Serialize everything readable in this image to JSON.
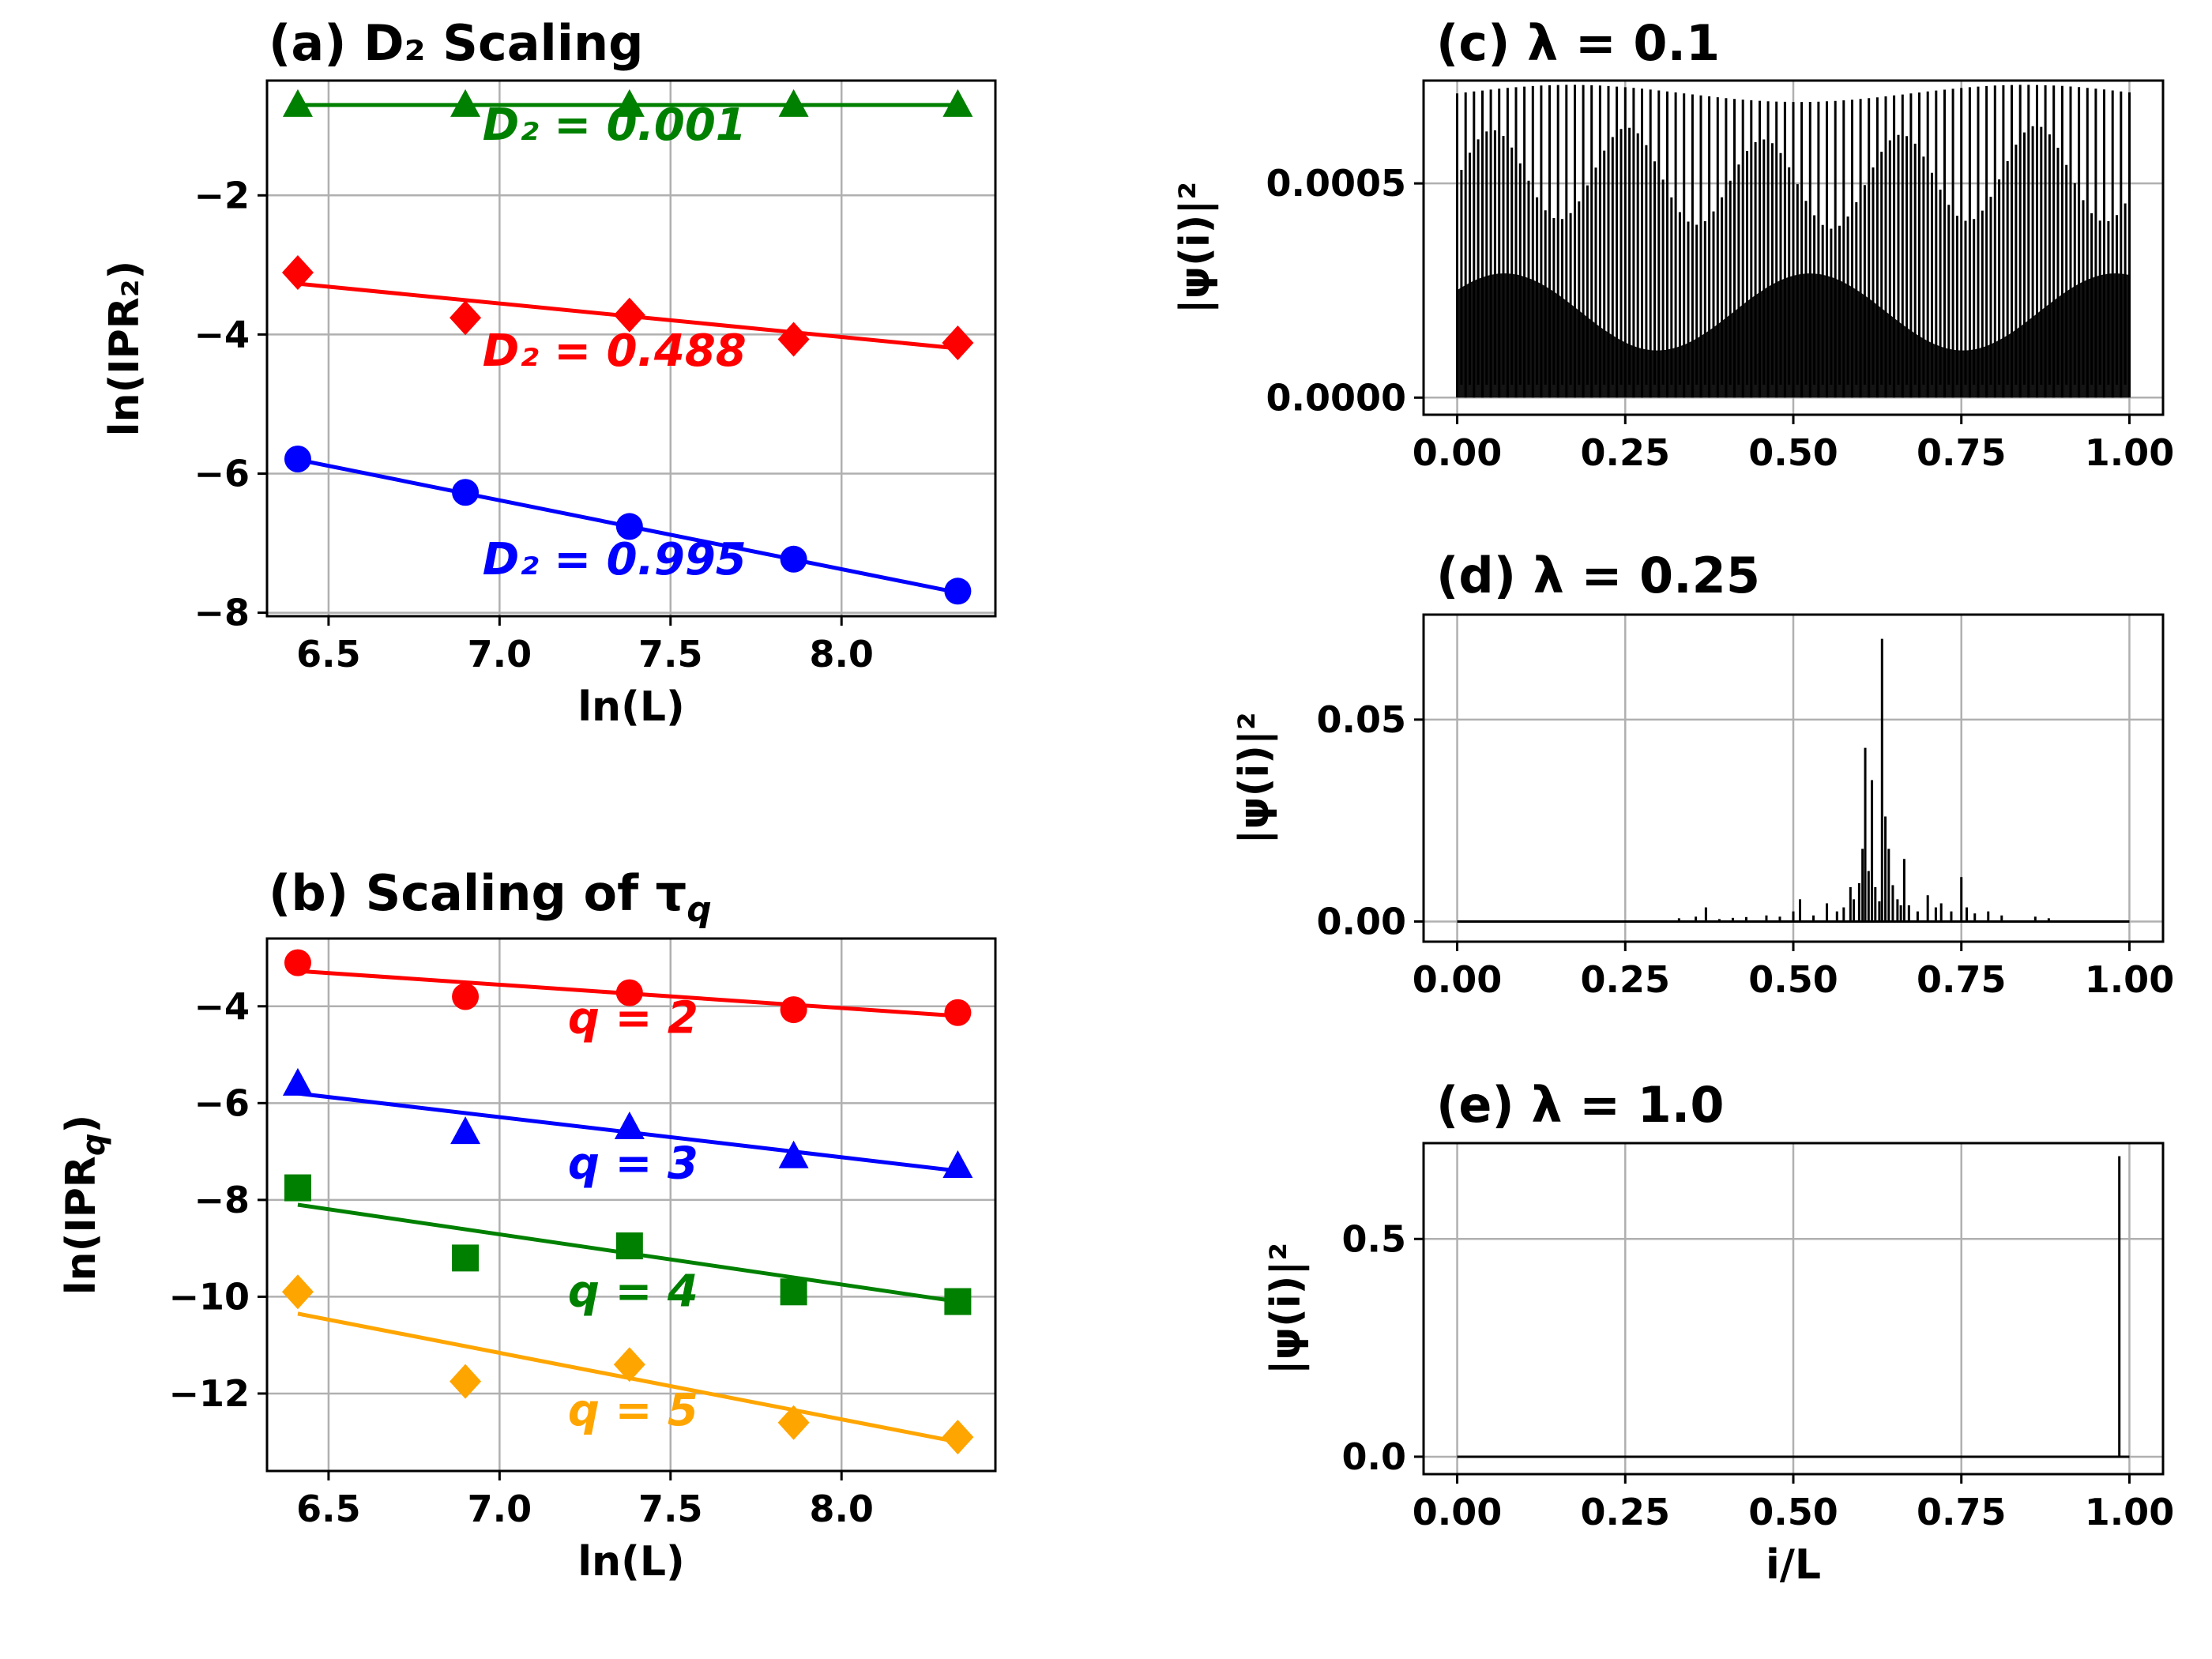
{
  "chart_data": [
    {
      "id": "a",
      "type": "scatter",
      "title": "(a)  D₂ Scaling",
      "xlabel": "ln(L)",
      "ylabel": "ln(IPR₂)",
      "xlim": [
        6.32,
        8.45
      ],
      "ylim": [
        -8.05,
        -0.35
      ],
      "xticks": [
        6.5,
        7.0,
        7.5,
        8.0
      ],
      "xtick_labels": [
        "6.5",
        "7.0",
        "7.5",
        "8.0"
      ],
      "yticks": [
        -2,
        -4,
        -6,
        -8
      ],
      "ytick_labels": [
        "−2",
        "−4",
        "−6",
        "−8"
      ],
      "grid": true,
      "x": [
        6.41,
        6.9,
        7.38,
        7.86,
        8.34
      ],
      "series": [
        {
          "name": "λ=0.1",
          "color": "#0000ff",
          "marker": "circle",
          "values": [
            -5.79,
            -6.27,
            -6.76,
            -7.23,
            -7.69
          ],
          "fit": [
            -5.8,
            -7.71
          ],
          "annotation": "D₂ = 0.995",
          "annot_at": [
            6.95,
            -7.45
          ]
        },
        {
          "name": "λ=0.25",
          "color": "#ff0000",
          "marker": "diamond",
          "values": [
            -3.11,
            -3.76,
            -3.72,
            -4.07,
            -4.12
          ],
          "fit": [
            -3.27,
            -4.2
          ],
          "annotation": "D₂ = 0.488",
          "annot_at": [
            6.95,
            -4.45
          ]
        },
        {
          "name": "λ=1.0",
          "color": "#008000",
          "marker": "triangle",
          "values": [
            -0.7,
            -0.7,
            -0.7,
            -0.7,
            -0.7
          ],
          "fit": [
            -0.7,
            -0.7
          ],
          "annotation": "D₂ = 0.001",
          "annot_at": [
            6.95,
            -1.2
          ]
        }
      ]
    },
    {
      "id": "b",
      "type": "scatter",
      "title": "(b)  Scaling of τ",
      "title_sub": "q",
      "xlabel": "ln(L)",
      "ylabel": "ln(IPR",
      "ylabel_sub": "q",
      "xlim": [
        6.32,
        8.45
      ],
      "ylim": [
        -13.6,
        -2.6
      ],
      "xticks": [
        6.5,
        7.0,
        7.5,
        8.0
      ],
      "xtick_labels": [
        "6.5",
        "7.0",
        "7.5",
        "8.0"
      ],
      "yticks": [
        -4,
        -6,
        -8,
        -10,
        -12
      ],
      "ytick_labels": [
        "−4",
        "−6",
        "−8",
        "−10",
        "−12"
      ],
      "grid": true,
      "x": [
        6.41,
        6.9,
        7.38,
        7.86,
        8.34
      ],
      "series": [
        {
          "name": "q=2",
          "color": "#ff0000",
          "marker": "circle",
          "values": [
            -3.1,
            -3.8,
            -3.72,
            -4.07,
            -4.13
          ],
          "fit": [
            -3.27,
            -4.2
          ],
          "annotation": "q = 2",
          "annot_at": [
            7.2,
            -4.55
          ]
        },
        {
          "name": "q=3",
          "color": "#0000ff",
          "marker": "triangle",
          "values": [
            -5.6,
            -6.6,
            -6.5,
            -7.1,
            -7.3
          ],
          "fit": [
            -5.8,
            -7.4
          ],
          "annotation": "q = 3",
          "annot_at": [
            7.2,
            -7.55
          ]
        },
        {
          "name": "q=4",
          "color": "#008000",
          "marker": "square",
          "values": [
            -7.75,
            -9.2,
            -8.95,
            -9.9,
            -10.1
          ],
          "fit": [
            -8.1,
            -10.1
          ],
          "annotation": "q = 4",
          "annot_at": [
            7.2,
            -10.2
          ]
        },
        {
          "name": "q=5",
          "color": "#ffa500",
          "marker": "diamond",
          "values": [
            -9.9,
            -11.75,
            -11.4,
            -12.6,
            -12.9
          ],
          "fit": [
            -10.35,
            -13.0
          ],
          "annotation": "q = 5",
          "annot_at": [
            7.2,
            -12.65
          ]
        }
      ]
    },
    {
      "id": "c",
      "type": "line",
      "title": "(c)  λ = 0.1",
      "xlabel": "",
      "ylabel": "|ψ(i)|²",
      "xlim": [
        -0.05,
        1.05
      ],
      "ylim": [
        -4e-05,
        0.00074
      ],
      "xticks": [
        0,
        0.25,
        0.5,
        0.75,
        1.0
      ],
      "xtick_labels": [
        "0.00",
        "0.25",
        "0.50",
        "0.75",
        "1.00"
      ],
      "yticks": [
        0,
        0.0005
      ],
      "ytick_labels": [
        "0.0000",
        "0.0005"
      ],
      "grid": true,
      "description": "extended, rapidly oscillating wavefunction",
      "oscillations": 80,
      "envelope_max": 0.00073,
      "envelope_min": 0.00069
    },
    {
      "id": "d",
      "type": "line",
      "title": "(d)  λ = 0.25",
      "xlabel": "",
      "ylabel": "|ψ(i)|²",
      "xlim": [
        -0.05,
        1.05
      ],
      "ylim": [
        -0.005,
        0.076
      ],
      "xticks": [
        0,
        0.25,
        0.5,
        0.75,
        1.0
      ],
      "xtick_labels": [
        "0.00",
        "0.25",
        "0.50",
        "0.75",
        "1.00"
      ],
      "yticks": [
        0,
        0.05
      ],
      "ytick_labels": [
        "0.00",
        "0.05"
      ],
      "grid": true,
      "peaks": [
        [
          0.33,
          0.0008
        ],
        [
          0.355,
          0.0012
        ],
        [
          0.37,
          0.0035
        ],
        [
          0.39,
          0.0006
        ],
        [
          0.41,
          0.0009
        ],
        [
          0.43,
          0.0011
        ],
        [
          0.46,
          0.0015
        ],
        [
          0.48,
          0.0012
        ],
        [
          0.5,
          0.0025
        ],
        [
          0.51,
          0.0055
        ],
        [
          0.53,
          0.0015
        ],
        [
          0.55,
          0.0045
        ],
        [
          0.565,
          0.0025
        ],
        [
          0.575,
          0.0035
        ],
        [
          0.585,
          0.0085
        ],
        [
          0.59,
          0.0055
        ],
        [
          0.598,
          0.0095
        ],
        [
          0.603,
          0.018
        ],
        [
          0.607,
          0.043
        ],
        [
          0.612,
          0.0125
        ],
        [
          0.617,
          0.035
        ],
        [
          0.622,
          0.0085
        ],
        [
          0.628,
          0.005
        ],
        [
          0.632,
          0.07
        ],
        [
          0.637,
          0.026
        ],
        [
          0.642,
          0.018
        ],
        [
          0.648,
          0.009
        ],
        [
          0.655,
          0.0055
        ],
        [
          0.66,
          0.004
        ],
        [
          0.665,
          0.0155
        ],
        [
          0.672,
          0.004
        ],
        [
          0.685,
          0.0025
        ],
        [
          0.7,
          0.0065
        ],
        [
          0.712,
          0.0035
        ],
        [
          0.72,
          0.0045
        ],
        [
          0.735,
          0.0025
        ],
        [
          0.75,
          0.011
        ],
        [
          0.758,
          0.0035
        ],
        [
          0.77,
          0.002
        ],
        [
          0.79,
          0.0025
        ],
        [
          0.81,
          0.0015
        ],
        [
          0.86,
          0.0012
        ],
        [
          0.88,
          0.0008
        ]
      ]
    },
    {
      "id": "e",
      "type": "line",
      "title": "(e)  λ = 1.0",
      "xlabel": "i/L",
      "ylabel": "|ψ(i)|²",
      "xlim": [
        -0.05,
        1.05
      ],
      "ylim": [
        -0.04,
        0.72
      ],
      "xticks": [
        0,
        0.25,
        0.5,
        0.75,
        1.0
      ],
      "xtick_labels": [
        "0.00",
        "0.25",
        "0.50",
        "0.75",
        "1.00"
      ],
      "yticks": [
        0,
        0.5
      ],
      "ytick_labels": [
        "0.0",
        "0.5"
      ],
      "grid": true,
      "peaks": [
        [
          0.985,
          0.69
        ]
      ]
    }
  ]
}
